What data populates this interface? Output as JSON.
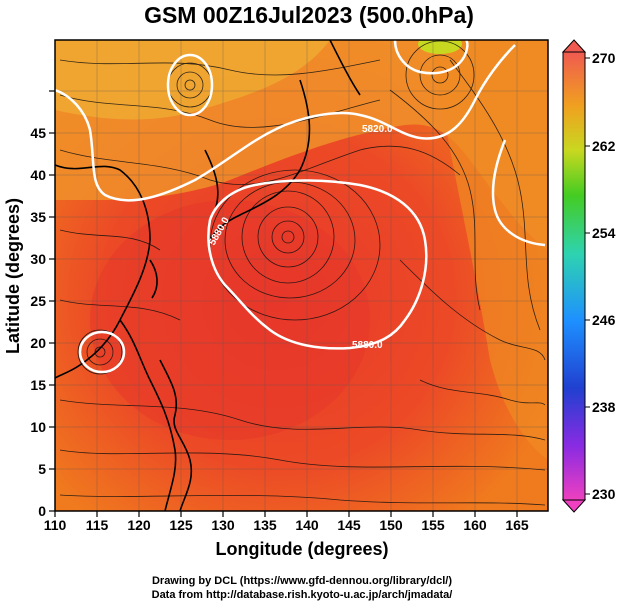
{
  "title": "GSM 00Z16Jul2023 (500.0hPa)",
  "x_axis_label": "Longitude (degrees)",
  "y_axis_label": "Latitude  (degrees)",
  "x_ticks": [
    "110",
    "115",
    "120",
    "125",
    "130",
    "135",
    "140",
    "145",
    "150",
    "155",
    "160",
    "165"
  ],
  "y_ticks": [
    "0",
    "5",
    "10",
    "15",
    "20",
    "25",
    "30",
    "35",
    "40",
    "45"
  ],
  "colorbar_ticks": [
    "270",
    "262",
    "254",
    "246",
    "238",
    "230"
  ],
  "contour_labels": [
    "5820.0",
    "5880.0",
    "5880.0"
  ],
  "credits": {
    "line1": "Drawing by DCL (https://www.gfd-dennou.org/library/dcl/)",
    "line2": "Data from http://database.rish.kyoto-u.ac.jp/arch/jmadata/"
  },
  "colors": {
    "field_warm": "#e8382a",
    "field_mid": "#f07a1e",
    "field_cool": "#f0a830",
    "colorbar_top": "#f05a50",
    "colorbar_bottom": "#ee40c0"
  }
}
